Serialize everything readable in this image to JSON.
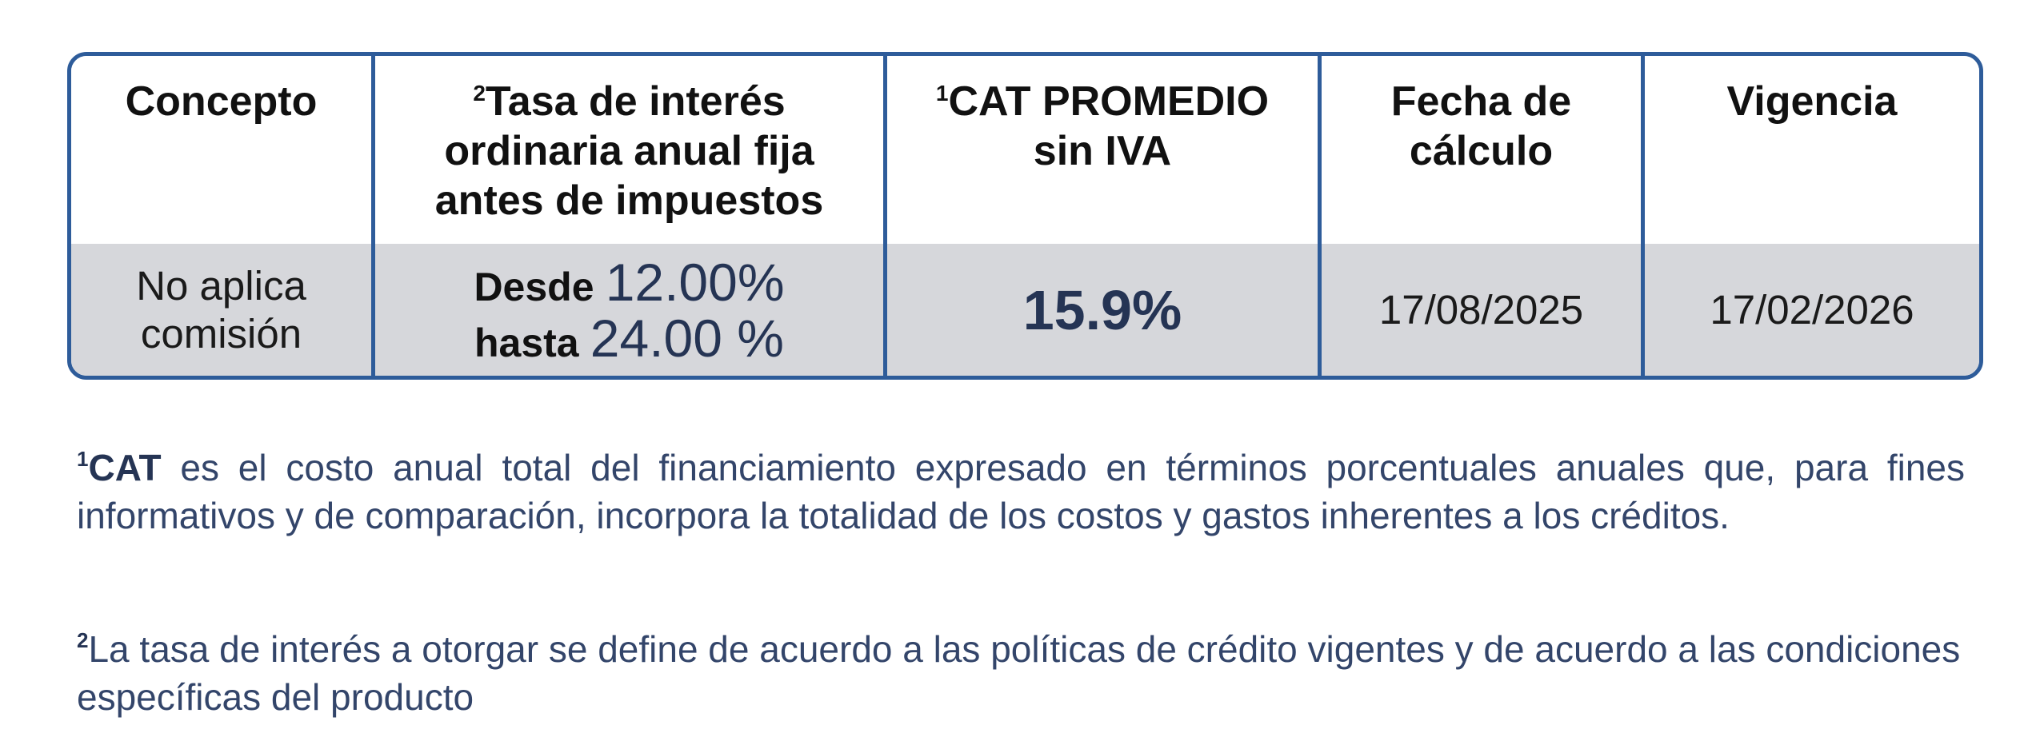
{
  "table": {
    "headers": [
      {
        "label": "Concepto"
      },
      {
        "sup": "2",
        "label": "Tasa de interés ordinaria anual fija antes de impuestos"
      },
      {
        "sup": "1",
        "label": "CAT PROMEDIO sin IVA"
      },
      {
        "label": "Fecha de cálculo"
      },
      {
        "label": "Vigencia"
      }
    ],
    "row": {
      "concepto": "No aplica comisión",
      "tasa": {
        "desde_label": "Desde",
        "desde_value": "12.00%",
        "hasta_label": "hasta",
        "hasta_value": "24.00 %"
      },
      "cat": "15.9%",
      "fecha_calculo": "17/08/2025",
      "vigencia": "17/02/2026"
    }
  },
  "notes": {
    "note1": {
      "sup": "1",
      "term": "CAT",
      "text": " es el costo anual total del financiamiento expresado en términos porcentuales anuales que, para fines informativos y de comparación, incorpora la totalidad de los costos y gastos inherentes a los créditos."
    },
    "note2": {
      "sup": "2",
      "text": "La tasa de interés a otorgar se define de acuerdo a las políticas de crédito vigentes y de acuerdo a las condiciones específicas del producto"
    }
  },
  "colors": {
    "border": "#2e5c9a",
    "row_background": "#d6d7db",
    "value_navy": "#253454",
    "note_text": "#33456a"
  }
}
